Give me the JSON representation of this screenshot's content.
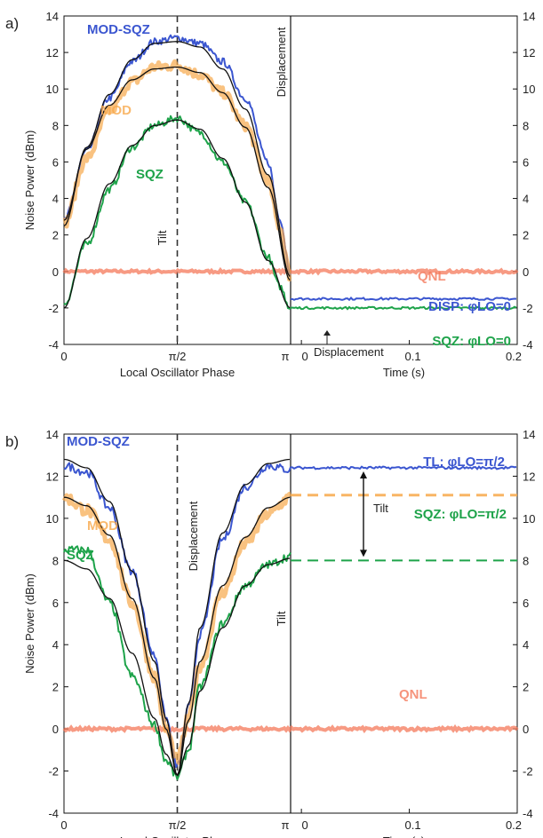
{
  "colors": {
    "blue": "#3b56d0",
    "orange": "#f7a84a",
    "green": "#1ea34a",
    "qnl": "#f4785a",
    "fit": "#111111"
  },
  "chart_data": [
    {
      "type": "line",
      "panel_label": "a)",
      "ylabel": "Noise Power (dBm)",
      "ylim": [
        -4,
        14
      ],
      "yticks": [
        "-4",
        "-2",
        "0",
        "2",
        "4",
        "6",
        "8",
        "10",
        "12",
        "14"
      ],
      "left": {
        "xlabel": "Local Oscillator Phase",
        "xticks": [
          "0",
          "π/2",
          "π"
        ],
        "xlim": [
          0,
          1
        ],
        "series": [
          {
            "name": "MOD-SQZ",
            "color_key": "blue",
            "x": [
              0,
              0.1,
              0.2,
              0.3,
              0.4,
              0.5,
              0.6,
              0.7,
              0.8,
              0.9,
              0.95,
              1
            ],
            "y": [
              2.8,
              6.6,
              9.5,
              11.5,
              12.6,
              12.8,
              12.5,
              11.5,
              9.5,
              6,
              3,
              0
            ]
          },
          {
            "name": "MOD",
            "color_key": "orange",
            "x": [
              0,
              0.1,
              0.2,
              0.3,
              0.4,
              0.5,
              0.6,
              0.7,
              0.8,
              0.9,
              0.95,
              1
            ],
            "y": [
              2.6,
              6.2,
              8.8,
              10.4,
              11.2,
              11.3,
              10.8,
              9.8,
              8,
              5,
              2.5,
              -0.3
            ]
          },
          {
            "name": "SQZ",
            "color_key": "green",
            "x": [
              0,
              0.1,
              0.2,
              0.3,
              0.4,
              0.5,
              0.6,
              0.7,
              0.8,
              0.9,
              0.95,
              1
            ],
            "y": [
              -1.8,
              1.5,
              4.5,
              6.8,
              8,
              8.4,
              7.6,
              6,
              3.8,
              0.8,
              -0.8,
              -2
            ]
          }
        ],
        "fits": [
          {
            "x": [
              0,
              0.1,
              0.2,
              0.3,
              0.4,
              0.5,
              0.6,
              0.7,
              0.8,
              0.9,
              1
            ],
            "y": [
              2.5,
              6.8,
              9.7,
              11.6,
              12.5,
              12.6,
              12.3,
              11.1,
              8.9,
              5.3,
              -0.3
            ]
          },
          {
            "x": [
              0,
              0.1,
              0.2,
              0.3,
              0.4,
              0.5,
              0.6,
              0.7,
              0.8,
              0.9,
              1
            ],
            "y": [
              2.8,
              6.7,
              9.1,
              10.5,
              11.1,
              11.2,
              10.9,
              9.8,
              7.9,
              4.6,
              -0.5
            ]
          },
          {
            "x": [
              0,
              0.1,
              0.2,
              0.3,
              0.4,
              0.5,
              0.6,
              0.7,
              0.8,
              0.9,
              1
            ],
            "y": [
              -2,
              1.8,
              4.8,
              6.9,
              8.0,
              8.3,
              7.8,
              6.2,
              3.8,
              0.6,
              -2
            ]
          }
        ],
        "qnl": {
          "name": "QNL",
          "y": 0
        },
        "annotations": [
          {
            "text": "Tilt",
            "x": 0.5,
            "y": 3.3
          },
          {
            "text": "Displacement",
            "x": 1,
            "y": 10
          }
        ]
      },
      "right": {
        "xlabel": "Time (s)",
        "xticks": [
          "0",
          "0.1",
          "0.2"
        ],
        "xlim": [
          -0.01,
          0.2
        ],
        "series": [
          {
            "name": "DISP: φ_LO=0",
            "label": "DISP: φLO=0",
            "color_key": "blue",
            "y": -1.5
          },
          {
            "name": "SQZ: φ_LO=0",
            "label": "SQZ: φLO=0",
            "color_key": "green",
            "y": -2
          }
        ],
        "qnl": {
          "name": "QNL",
          "y": 0
        },
        "annotations": [
          {
            "text": "Displacement",
            "x": 0.045,
            "y": -2.5
          }
        ]
      }
    },
    {
      "type": "line",
      "panel_label": "b)",
      "ylabel": "Noise Power (dBm)",
      "ylim": [
        -4,
        14
      ],
      "yticks": [
        "-4",
        "-2",
        "0",
        "2",
        "4",
        "6",
        "8",
        "10",
        "12",
        "14"
      ],
      "left": {
        "xlabel": "Local Oscillator Phase",
        "xticks": [
          "0",
          "π/2",
          "π"
        ],
        "xlim": [
          0,
          1
        ],
        "series": [
          {
            "name": "MOD-SQZ",
            "color_key": "blue",
            "x": [
              0,
              0.1,
              0.2,
              0.3,
              0.4,
              0.45,
              0.5,
              0.55,
              0.6,
              0.7,
              0.8,
              0.9,
              1
            ],
            "y": [
              12.5,
              12.2,
              10.5,
              7.5,
              3.5,
              0.5,
              -1.8,
              1,
              4.5,
              9,
              11.5,
              12.5,
              12.3
            ]
          },
          {
            "name": "MOD",
            "color_key": "orange",
            "x": [
              0,
              0.1,
              0.2,
              0.3,
              0.4,
              0.45,
              0.5,
              0.55,
              0.6,
              0.7,
              0.8,
              0.9,
              1
            ],
            "y": [
              11,
              10.4,
              9,
              6,
              2.5,
              0,
              -1.5,
              0.5,
              3,
              6.5,
              8.8,
              10.2,
              11
            ]
          },
          {
            "name": "SQZ",
            "color_key": "green",
            "x": [
              0,
              0.1,
              0.2,
              0.3,
              0.4,
              0.45,
              0.5,
              0.55,
              0.6,
              0.7,
              0.8,
              0.9,
              1
            ],
            "y": [
              8.5,
              8.5,
              6,
              2.5,
              0.2,
              -1.5,
              -2.3,
              -1,
              2,
              5,
              6.8,
              7.8,
              8.2
            ]
          }
        ],
        "fits": [
          {
            "x": [
              0,
              0.1,
              0.2,
              0.3,
              0.4,
              0.45,
              0.5,
              0.55,
              0.6,
              0.7,
              0.8,
              0.9,
              1
            ],
            "y": [
              12.8,
              12.4,
              10.8,
              7.5,
              3.2,
              0.5,
              -2.2,
              1.2,
              4.8,
              9.3,
              11.6,
              12.6,
              12.8
            ]
          },
          {
            "x": [
              0,
              0.1,
              0.2,
              0.3,
              0.4,
              0.45,
              0.5,
              0.55,
              0.6,
              0.7,
              0.8,
              0.9,
              1
            ],
            "y": [
              11,
              10.6,
              9.2,
              6.2,
              2.4,
              0,
              -2.2,
              0.4,
              3.2,
              6.8,
              9.1,
              10.5,
              11
            ]
          },
          {
            "x": [
              0,
              0.1,
              0.2,
              0.3,
              0.4,
              0.45,
              0.5,
              0.55,
              0.6,
              0.7,
              0.8,
              0.9,
              1
            ],
            "y": [
              8,
              7.6,
              6.2,
              3.6,
              0.5,
              -1.2,
              -2.2,
              -0.8,
              1.8,
              4.8,
              6.8,
              7.8,
              8.1
            ]
          }
        ],
        "qnl": {
          "name": "QNL",
          "y": 0
        },
        "annotations": [
          {
            "text": "Displacement",
            "x": 0.5,
            "y": 9
          },
          {
            "text": "Tilt",
            "x": 1,
            "y": 5
          }
        ]
      },
      "right": {
        "xlabel": "Time (s)",
        "xticks": [
          "0",
          "0.1",
          "0.2"
        ],
        "xlim": [
          -0.01,
          0.2
        ],
        "series": [
          {
            "name": "TL: φ_LO=π/2",
            "label": "TL: φLO=π/2",
            "color_key": "blue",
            "y": 12.4
          },
          {
            "name": "MOD",
            "label": "",
            "color_key": "orange",
            "y": 11.1,
            "dashed": true
          },
          {
            "name": "SQZ: φ_LO=π/2",
            "label": "SQZ: φLO=π/2",
            "color_key": "green",
            "y": 8,
            "dashed": true
          }
        ],
        "qnl": {
          "name": "QNL",
          "y": 0
        },
        "annotations": [
          {
            "text": "Tilt",
            "x": 0.05,
            "y": 9.8
          }
        ]
      }
    }
  ]
}
